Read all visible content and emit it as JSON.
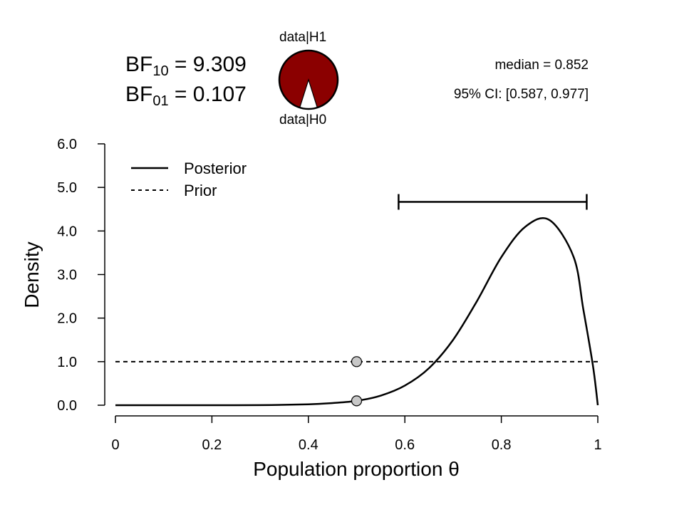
{
  "header": {
    "bf10_label": "BF",
    "bf10_sub": "10",
    "bf10_eq": " = ",
    "bf10_value": "9.309",
    "bf01_label": "BF",
    "bf01_sub": "01",
    "bf01_eq": " = ",
    "bf01_value": "0.107",
    "median_text": "median = 0.852",
    "ci_text": "95% CI: [0.587, 0.977]",
    "pie_top_label": "data|H1",
    "pie_bottom_label": "data|H0"
  },
  "pie": {
    "h1_fraction": 0.903,
    "h0_fraction": 0.097,
    "colors": {
      "h1": "#8b0000",
      "h0": "#ffffff"
    }
  },
  "chart_data": {
    "type": "line",
    "xlabel": "Population proportion θ",
    "ylabel": "Density",
    "xlim": [
      0,
      1
    ],
    "ylim": [
      0,
      6
    ],
    "xticks": [
      0,
      0.2,
      0.4,
      0.6,
      0.8,
      1
    ],
    "xtick_labels": [
      "0",
      "0.2",
      "0.4",
      "0.6",
      "0.8",
      "1"
    ],
    "yticks": [
      0,
      1,
      2,
      3,
      4,
      5,
      6
    ],
    "ytick_labels": [
      "0.0",
      "1.0",
      "2.0",
      "3.0",
      "4.0",
      "5.0",
      "6.0"
    ],
    "legend": {
      "position": "top-left",
      "entries": [
        "Posterior",
        "Prior"
      ]
    },
    "series": [
      {
        "name": "Posterior",
        "style": "solid",
        "x": [
          0,
          0.1,
          0.2,
          0.3,
          0.4,
          0.45,
          0.5,
          0.55,
          0.6,
          0.65,
          0.7,
          0.75,
          0.8,
          0.85,
          0.9,
          0.95,
          0.97,
          0.99,
          1
        ],
        "values": [
          0,
          0,
          0,
          0.002,
          0.02,
          0.05,
          0.1,
          0.22,
          0.45,
          0.85,
          1.5,
          2.4,
          3.4,
          4.1,
          4.25,
          3.4,
          2.2,
          0.9,
          0
        ]
      },
      {
        "name": "Prior",
        "style": "dashed",
        "x": [
          0,
          1
        ],
        "values": [
          1,
          1
        ]
      }
    ],
    "points": [
      {
        "x": 0.5,
        "y": 1.0
      },
      {
        "x": 0.5,
        "y": 0.1
      }
    ],
    "credible_interval": {
      "lower": 0.587,
      "upper": 0.977,
      "y": 4.7
    }
  }
}
